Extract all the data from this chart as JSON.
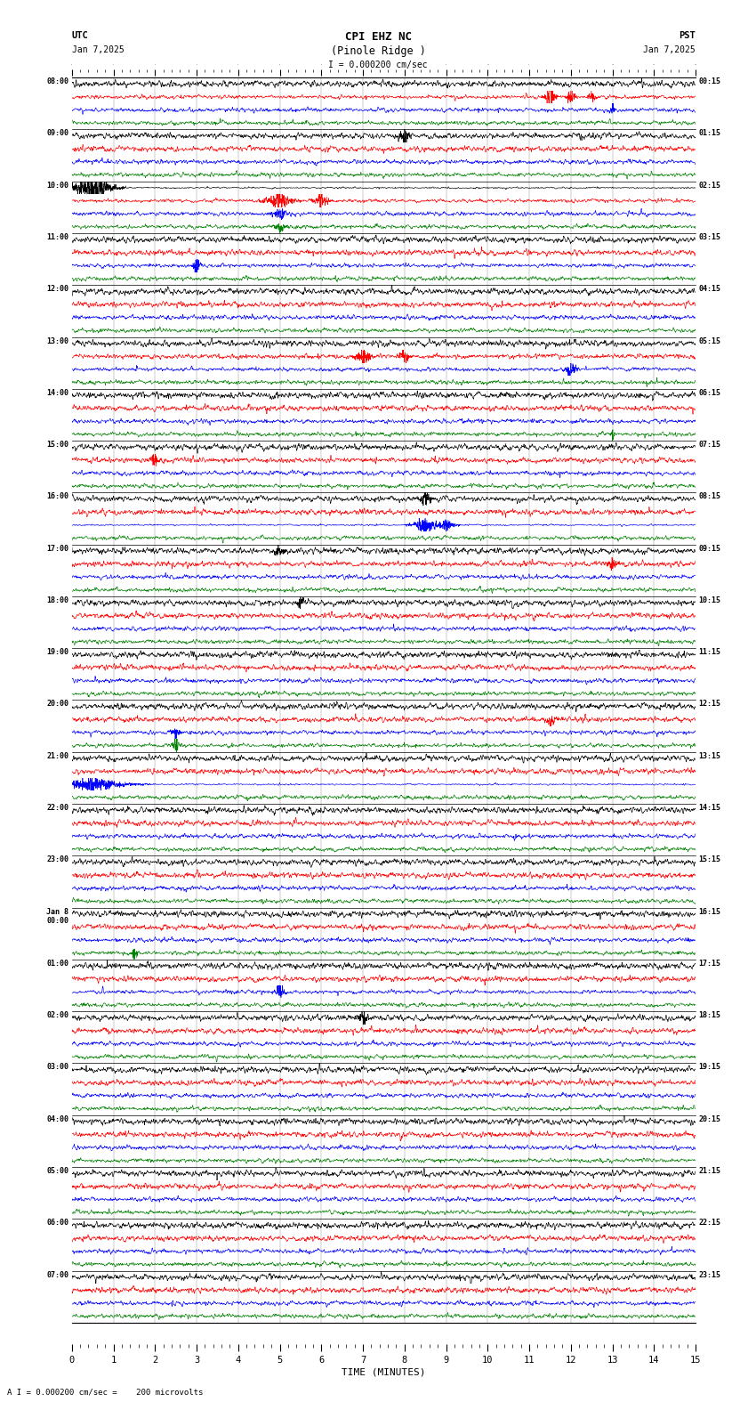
{
  "title_line1": "CPI EHZ NC",
  "title_line2": "(Pinole Ridge )",
  "scale_label": "I = 0.000200 cm/sec",
  "left_label_top": "UTC",
  "left_label_date": "Jan 7,2025",
  "right_label_top": "PST",
  "right_label_date": "Jan 7,2025",
  "xlabel": "TIME (MINUTES)",
  "bottom_note": "A I = 0.000200 cm/sec =    200 microvolts",
  "utc_labels": [
    "08:00",
    "09:00",
    "10:00",
    "11:00",
    "12:00",
    "13:00",
    "14:00",
    "15:00",
    "16:00",
    "17:00",
    "18:00",
    "19:00",
    "20:00",
    "21:00",
    "22:00",
    "23:00",
    "Jan 8\n00:00",
    "01:00",
    "02:00",
    "03:00",
    "04:00",
    "05:00",
    "06:00",
    "07:00"
  ],
  "pst_labels": [
    "00:15",
    "01:15",
    "02:15",
    "03:15",
    "04:15",
    "05:15",
    "06:15",
    "07:15",
    "08:15",
    "09:15",
    "10:15",
    "11:15",
    "12:15",
    "13:15",
    "14:15",
    "15:15",
    "16:15",
    "17:15",
    "18:15",
    "19:15",
    "20:15",
    "21:15",
    "22:15",
    "23:15"
  ],
  "colors": [
    "black",
    "red",
    "blue",
    "green"
  ],
  "n_hour_rows": 24,
  "n_channels": 4,
  "n_points": 3000,
  "xmin": 0,
  "xmax": 15,
  "bg_color": "white",
  "grid_color": "#888888",
  "base_amp_black": 0.42,
  "base_amp_red": 0.38,
  "base_amp_blue": 0.3,
  "base_amp_green": 0.28,
  "fig_width": 8.5,
  "fig_height": 15.84,
  "dpi": 100
}
